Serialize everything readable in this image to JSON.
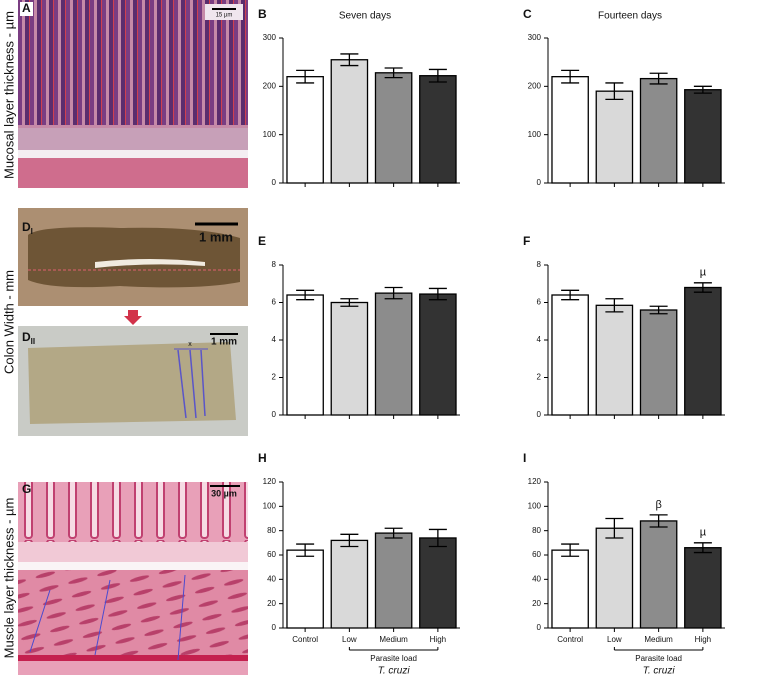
{
  "row_labels": [
    "Mucosal layer thickness - µm",
    "Colon Width - mm",
    "Muscle layer thickness - µm"
  ],
  "images": [
    {
      "letter": "A",
      "scale_label": "15 µm"
    },
    {
      "letter": "D",
      "subscript": "I",
      "scale_label": "1 mm"
    },
    {
      "letter": "D",
      "subscript": "II",
      "scale_label": "1 mm",
      "marker": "x"
    },
    {
      "letter": "G",
      "scale_label": "30 µm"
    }
  ],
  "chart_data": [
    {
      "type": "bar",
      "label": "B",
      "title": "Seven days",
      "categories": [
        null,
        null,
        null,
        null
      ],
      "values": [
        220,
        255,
        228,
        222
      ],
      "errors": [
        13,
        12,
        10,
        13
      ],
      "colors": [
        "#ffffff",
        "#d9d9d9",
        "#8c8c8c",
        "#333333"
      ],
      "ylim": [
        0,
        300
      ],
      "yticks": [
        0,
        100,
        200,
        300
      ]
    },
    {
      "type": "bar",
      "label": "C",
      "title": "Fourteen days",
      "categories": [
        null,
        null,
        null,
        null
      ],
      "values": [
        220,
        190,
        216,
        193
      ],
      "errors": [
        13,
        17,
        11,
        7
      ],
      "colors": [
        "#ffffff",
        "#d9d9d9",
        "#8c8c8c",
        "#333333"
      ],
      "ylim": [
        0,
        300
      ],
      "yticks": [
        0,
        100,
        200,
        300
      ]
    },
    {
      "type": "bar",
      "label": "E",
      "categories": [
        null,
        null,
        null,
        null
      ],
      "values": [
        6.4,
        6.0,
        6.5,
        6.45
      ],
      "errors": [
        0.25,
        0.2,
        0.3,
        0.3
      ],
      "colors": [
        "#ffffff",
        "#d9d9d9",
        "#8c8c8c",
        "#333333"
      ],
      "ylim": [
        0,
        8
      ],
      "yticks": [
        0,
        2,
        4,
        6,
        8
      ]
    },
    {
      "type": "bar",
      "label": "F",
      "categories": [
        null,
        null,
        null,
        null
      ],
      "values": [
        6.4,
        5.85,
        5.6,
        6.8
      ],
      "errors": [
        0.25,
        0.35,
        0.2,
        0.25
      ],
      "value_annotations": [
        null,
        null,
        null,
        "µ"
      ],
      "colors": [
        "#ffffff",
        "#d9d9d9",
        "#8c8c8c",
        "#333333"
      ],
      "ylim": [
        0,
        8
      ],
      "yticks": [
        0,
        2,
        4,
        6,
        8
      ]
    },
    {
      "type": "bar",
      "label": "H",
      "categories": [
        "Control",
        "Low",
        "Medium",
        "High"
      ],
      "values": [
        64,
        72,
        78,
        74
      ],
      "errors": [
        5,
        5,
        4,
        7
      ],
      "colors": [
        "#ffffff",
        "#d9d9d9",
        "#8c8c8c",
        "#333333"
      ],
      "ylim": [
        0,
        120
      ],
      "yticks": [
        0,
        20,
        40,
        60,
        80,
        100,
        120
      ],
      "group_label": "Parasite load",
      "group_sublabel": "T. cruzi"
    },
    {
      "type": "bar",
      "label": "I",
      "categories": [
        "Control",
        "Low",
        "Medium",
        "High"
      ],
      "values": [
        64,
        82,
        88,
        66
      ],
      "errors": [
        5,
        8,
        5,
        4
      ],
      "value_annotations": [
        null,
        null,
        "β",
        "µ"
      ],
      "colors": [
        "#ffffff",
        "#d9d9d9",
        "#8c8c8c",
        "#333333"
      ],
      "ylim": [
        0,
        120
      ],
      "yticks": [
        0,
        20,
        40,
        60,
        80,
        100,
        120
      ],
      "group_label": "Parasite load",
      "group_sublabel": "T. cruzi"
    }
  ]
}
